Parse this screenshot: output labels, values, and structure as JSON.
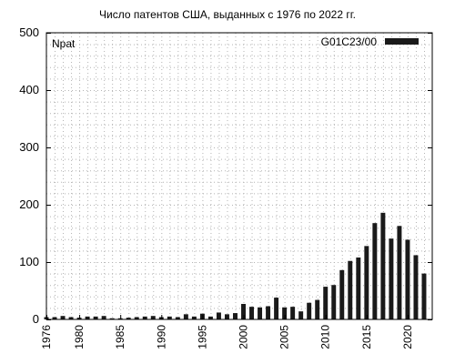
{
  "chart_data": {
    "type": "bar",
    "title": "Число патентов США, выданных с 1976 по 2022 гг.",
    "ylabel": "Npat",
    "xlabel": "",
    "ylim": [
      0,
      500
    ],
    "xlim": [
      1976,
      2023
    ],
    "grid": true,
    "legend_position": "top-right",
    "yticks": [
      0,
      100,
      200,
      300,
      400,
      500
    ],
    "xticks": [
      1976,
      1980,
      1985,
      1990,
      1995,
      2000,
      2005,
      2010,
      2015,
      2020
    ],
    "series": [
      {
        "name": "G01C23/00",
        "color": "#1a1a1a",
        "x": [
          1976,
          1977,
          1978,
          1979,
          1980,
          1981,
          1982,
          1983,
          1984,
          1985,
          1986,
          1987,
          1988,
          1989,
          1990,
          1991,
          1992,
          1993,
          1994,
          1995,
          1996,
          1997,
          1998,
          1999,
          2000,
          2001,
          2002,
          2003,
          2004,
          2005,
          2006,
          2007,
          2008,
          2009,
          2010,
          2011,
          2012,
          2013,
          2014,
          2015,
          2016,
          2017,
          2018,
          2019,
          2020,
          2021,
          2022
        ],
        "values": [
          4,
          4,
          6,
          4,
          3,
          5,
          5,
          6,
          2,
          2,
          3,
          4,
          5,
          6,
          4,
          5,
          4,
          9,
          5,
          10,
          5,
          12,
          9,
          11,
          27,
          22,
          21,
          23,
          38,
          21,
          22,
          14,
          29,
          34,
          57,
          60,
          86,
          102,
          108,
          128,
          168,
          186,
          141,
          163,
          139,
          112,
          80
        ]
      }
    ]
  }
}
